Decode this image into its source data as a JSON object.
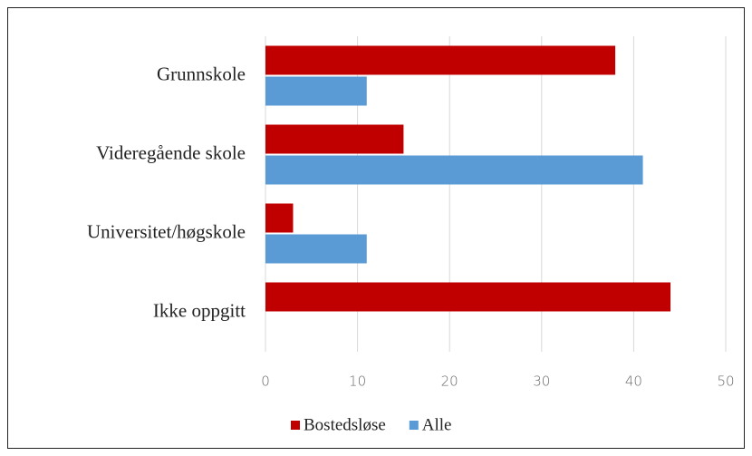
{
  "chart_data": {
    "type": "bar",
    "orientation": "horizontal",
    "categories": [
      "Grunnskole",
      "Videregående skole",
      "Universitet/høgskole",
      "Ikke oppgitt"
    ],
    "series": [
      {
        "name": "Bostedsløse",
        "color": "#c00000",
        "values": [
          38,
          15,
          3,
          44
        ]
      },
      {
        "name": "Alle",
        "color": "#5b9bd5",
        "values": [
          11,
          41,
          11,
          0
        ]
      }
    ],
    "xlim": [
      0,
      50
    ],
    "xticks": [
      0,
      10,
      20,
      30,
      40,
      50
    ],
    "grid": true,
    "legend": "bottom"
  }
}
